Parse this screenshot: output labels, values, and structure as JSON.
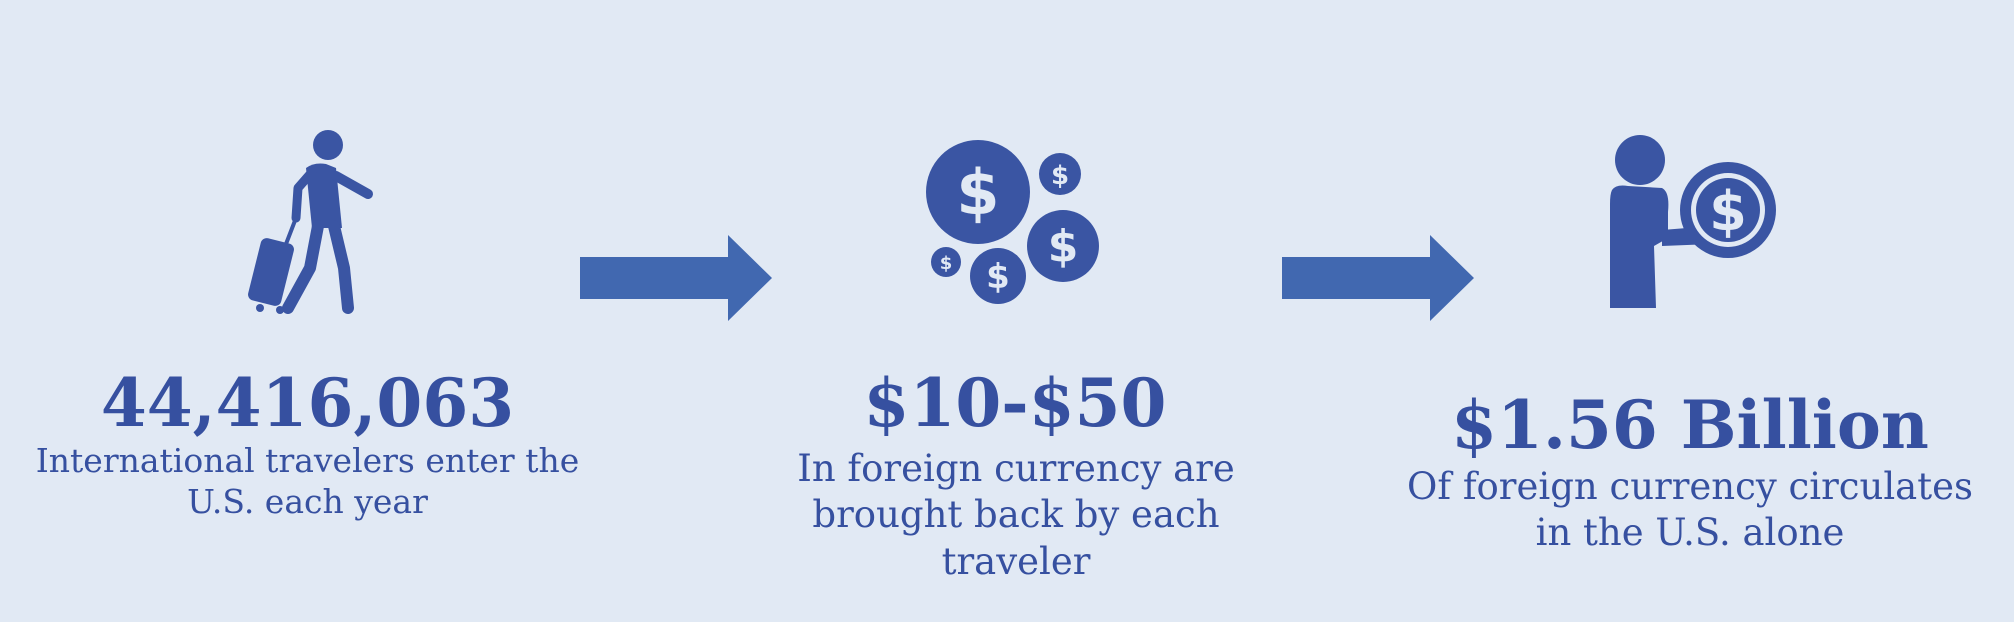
{
  "colors": {
    "background": "#e1e9f4",
    "icon": "#3a55a3",
    "arrow": "#4168b0",
    "text": "#3650a0"
  },
  "stats": [
    {
      "icon": "traveler-with-suitcase-icon",
      "value": "44,416,063",
      "description": "International travelers enter the U.S. each year"
    },
    {
      "icon": "dollar-coins-icon",
      "value": "$10-$50",
      "description": "In foreign currency are brought back by each traveler"
    },
    {
      "icon": "person-with-coin-icon",
      "value": "$1.56 Billion",
      "description": "Of foreign currency circulates in the U.S. alone"
    }
  ],
  "arrows": [
    "right-arrow-icon",
    "right-arrow-icon"
  ]
}
